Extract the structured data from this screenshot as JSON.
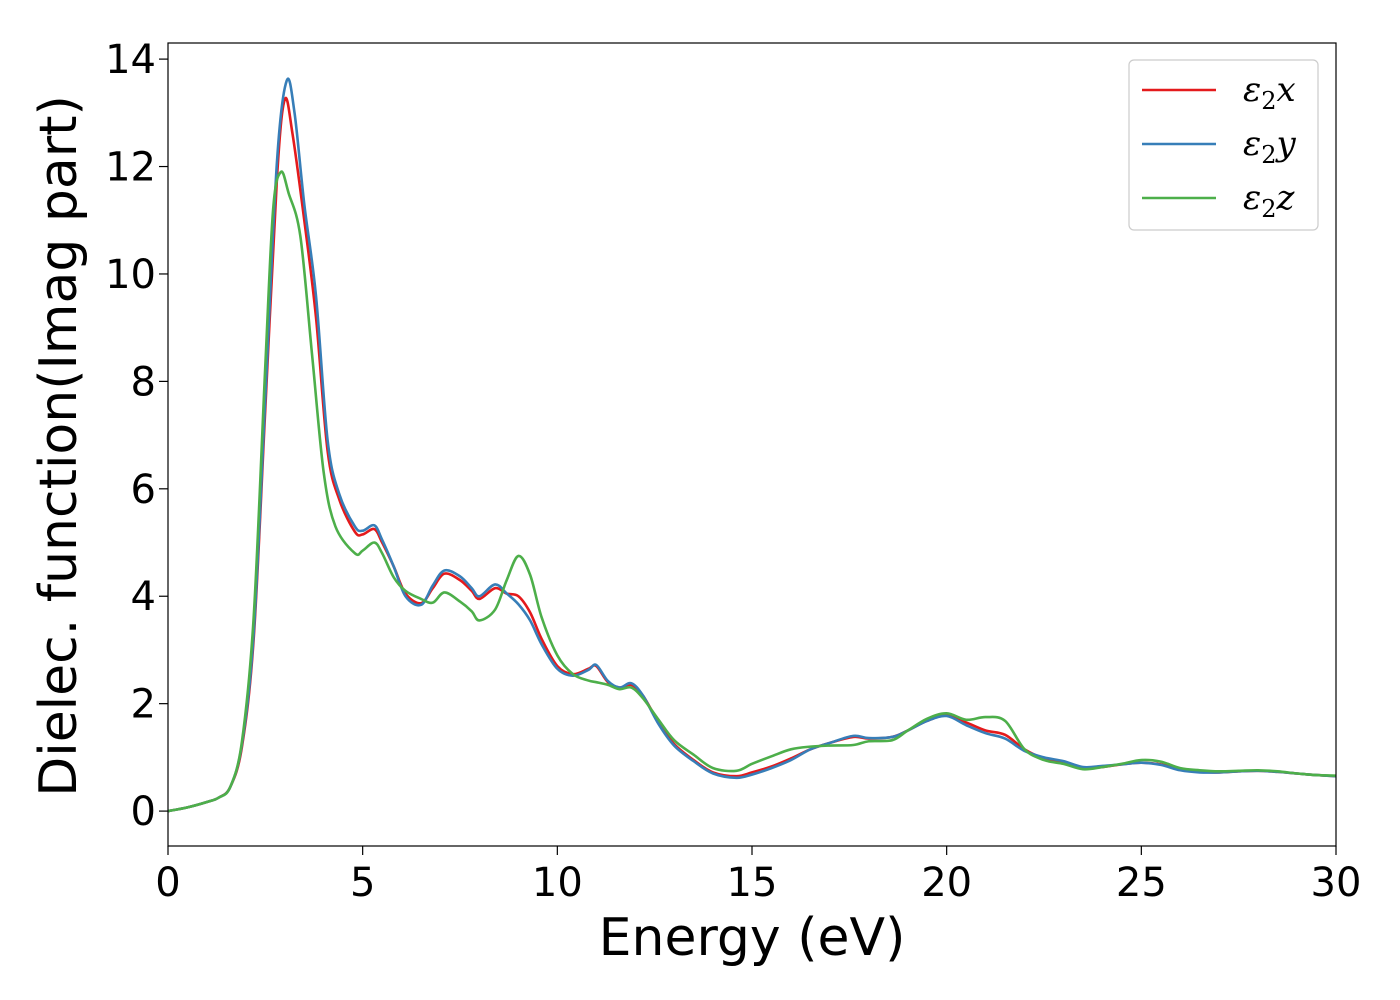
{
  "chart_data": {
    "type": "line",
    "xlabel": "Energy (eV)",
    "ylabel": "Dielec. function(Imag part)",
    "xlim": [
      0,
      30
    ],
    "ylim": [
      -0.65,
      14.3
    ],
    "xticks": [
      0,
      5,
      10,
      15,
      20,
      25,
      30
    ],
    "yticks": [
      0,
      2,
      4,
      6,
      8,
      10,
      12,
      14
    ],
    "grid": false,
    "legend_position": "top-right",
    "series": [
      {
        "name": "ε₂x",
        "legend": {
          "base": "ε",
          "sub": "2",
          "suffix": "x"
        },
        "color": "#e41a1c",
        "points": [
          [
            0,
            0.0
          ],
          [
            0.5,
            0.07
          ],
          [
            1.0,
            0.17
          ],
          [
            1.3,
            0.25
          ],
          [
            1.6,
            0.45
          ],
          [
            1.9,
            1.2
          ],
          [
            2.2,
            3.2
          ],
          [
            2.5,
            7.5
          ],
          [
            2.8,
            11.8
          ],
          [
            3.0,
            13.25
          ],
          [
            3.2,
            12.6
          ],
          [
            3.5,
            11.0
          ],
          [
            3.8,
            9.2
          ],
          [
            4.1,
            6.7
          ],
          [
            4.4,
            5.8
          ],
          [
            4.8,
            5.2
          ],
          [
            5.0,
            5.15
          ],
          [
            5.3,
            5.25
          ],
          [
            5.5,
            5.0
          ],
          [
            5.8,
            4.55
          ],
          [
            6.1,
            4.05
          ],
          [
            6.5,
            3.87
          ],
          [
            6.8,
            4.15
          ],
          [
            7.1,
            4.42
          ],
          [
            7.5,
            4.3
          ],
          [
            7.8,
            4.1
          ],
          [
            8.0,
            3.95
          ],
          [
            8.4,
            4.15
          ],
          [
            8.7,
            4.05
          ],
          [
            9.0,
            4.0
          ],
          [
            9.3,
            3.7
          ],
          [
            9.6,
            3.2
          ],
          [
            10.0,
            2.7
          ],
          [
            10.4,
            2.55
          ],
          [
            10.8,
            2.65
          ],
          [
            11.0,
            2.7
          ],
          [
            11.3,
            2.4
          ],
          [
            11.6,
            2.3
          ],
          [
            11.9,
            2.35
          ],
          [
            12.2,
            2.15
          ],
          [
            12.6,
            1.65
          ],
          [
            13.0,
            1.25
          ],
          [
            13.5,
            0.95
          ],
          [
            14.0,
            0.72
          ],
          [
            14.6,
            0.65
          ],
          [
            15.0,
            0.72
          ],
          [
            15.5,
            0.83
          ],
          [
            16.0,
            0.98
          ],
          [
            16.5,
            1.15
          ],
          [
            17.0,
            1.27
          ],
          [
            17.6,
            1.38
          ],
          [
            18.0,
            1.35
          ],
          [
            18.6,
            1.38
          ],
          [
            19.0,
            1.5
          ],
          [
            19.5,
            1.68
          ],
          [
            20.0,
            1.78
          ],
          [
            20.5,
            1.65
          ],
          [
            21.0,
            1.5
          ],
          [
            21.5,
            1.42
          ],
          [
            22.0,
            1.15
          ],
          [
            22.5,
            0.98
          ],
          [
            23.0,
            0.9
          ],
          [
            23.5,
            0.8
          ],
          [
            24.0,
            0.82
          ],
          [
            24.5,
            0.87
          ],
          [
            25.0,
            0.9
          ],
          [
            25.5,
            0.87
          ],
          [
            26.0,
            0.78
          ],
          [
            26.5,
            0.73
          ],
          [
            27.0,
            0.72
          ],
          [
            27.5,
            0.74
          ],
          [
            28.0,
            0.75
          ],
          [
            28.5,
            0.73
          ],
          [
            29.0,
            0.7
          ],
          [
            29.5,
            0.67
          ],
          [
            30.0,
            0.65
          ]
        ]
      },
      {
        "name": "ε₂y",
        "legend": {
          "base": "ε",
          "sub": "2",
          "suffix": "y"
        },
        "color": "#377eb8",
        "points": [
          [
            0,
            0.0
          ],
          [
            0.5,
            0.07
          ],
          [
            1.0,
            0.17
          ],
          [
            1.3,
            0.25
          ],
          [
            1.6,
            0.45
          ],
          [
            1.9,
            1.25
          ],
          [
            2.2,
            3.3
          ],
          [
            2.5,
            7.7
          ],
          [
            2.8,
            12.1
          ],
          [
            3.05,
            13.6
          ],
          [
            3.25,
            13.0
          ],
          [
            3.5,
            11.3
          ],
          [
            3.8,
            9.6
          ],
          [
            4.1,
            6.9
          ],
          [
            4.4,
            5.9
          ],
          [
            4.8,
            5.3
          ],
          [
            5.0,
            5.22
          ],
          [
            5.3,
            5.32
          ],
          [
            5.5,
            5.05
          ],
          [
            5.8,
            4.55
          ],
          [
            6.1,
            4.0
          ],
          [
            6.5,
            3.84
          ],
          [
            6.8,
            4.2
          ],
          [
            7.1,
            4.48
          ],
          [
            7.5,
            4.37
          ],
          [
            7.8,
            4.15
          ],
          [
            8.0,
            4.0
          ],
          [
            8.4,
            4.22
          ],
          [
            8.7,
            4.05
          ],
          [
            9.0,
            3.85
          ],
          [
            9.3,
            3.55
          ],
          [
            9.6,
            3.1
          ],
          [
            10.0,
            2.65
          ],
          [
            10.4,
            2.52
          ],
          [
            10.8,
            2.63
          ],
          [
            11.0,
            2.72
          ],
          [
            11.3,
            2.42
          ],
          [
            11.6,
            2.3
          ],
          [
            11.9,
            2.38
          ],
          [
            12.2,
            2.15
          ],
          [
            12.6,
            1.62
          ],
          [
            13.0,
            1.22
          ],
          [
            13.5,
            0.93
          ],
          [
            14.0,
            0.7
          ],
          [
            14.6,
            0.62
          ],
          [
            15.0,
            0.68
          ],
          [
            15.5,
            0.8
          ],
          [
            16.0,
            0.95
          ],
          [
            16.5,
            1.15
          ],
          [
            17.0,
            1.27
          ],
          [
            17.6,
            1.4
          ],
          [
            18.0,
            1.36
          ],
          [
            18.6,
            1.38
          ],
          [
            19.0,
            1.5
          ],
          [
            19.5,
            1.68
          ],
          [
            20.0,
            1.77
          ],
          [
            20.5,
            1.6
          ],
          [
            21.0,
            1.45
          ],
          [
            21.5,
            1.35
          ],
          [
            22.0,
            1.12
          ],
          [
            22.5,
            1.0
          ],
          [
            23.0,
            0.93
          ],
          [
            23.5,
            0.82
          ],
          [
            24.0,
            0.84
          ],
          [
            24.5,
            0.87
          ],
          [
            25.0,
            0.9
          ],
          [
            25.5,
            0.86
          ],
          [
            26.0,
            0.76
          ],
          [
            26.5,
            0.72
          ],
          [
            27.0,
            0.72
          ],
          [
            27.5,
            0.74
          ],
          [
            28.0,
            0.75
          ],
          [
            28.5,
            0.73
          ],
          [
            29.0,
            0.7
          ],
          [
            29.5,
            0.67
          ],
          [
            30.0,
            0.65
          ]
        ]
      },
      {
        "name": "ε₂z",
        "legend": {
          "base": "ε",
          "sub": "2",
          "suffix": "z"
        },
        "color": "#4daf4a",
        "points": [
          [
            0,
            0.0
          ],
          [
            0.5,
            0.07
          ],
          [
            1.0,
            0.17
          ],
          [
            1.3,
            0.25
          ],
          [
            1.6,
            0.45
          ],
          [
            1.9,
            1.3
          ],
          [
            2.2,
            3.6
          ],
          [
            2.5,
            8.3
          ],
          [
            2.7,
            11.2
          ],
          [
            2.9,
            11.9
          ],
          [
            3.1,
            11.5
          ],
          [
            3.4,
            10.7
          ],
          [
            3.7,
            8.5
          ],
          [
            4.0,
            6.3
          ],
          [
            4.3,
            5.3
          ],
          [
            4.8,
            4.8
          ],
          [
            5.0,
            4.85
          ],
          [
            5.3,
            5.0
          ],
          [
            5.5,
            4.8
          ],
          [
            5.8,
            4.35
          ],
          [
            6.1,
            4.1
          ],
          [
            6.5,
            3.95
          ],
          [
            6.8,
            3.88
          ],
          [
            7.1,
            4.07
          ],
          [
            7.5,
            3.9
          ],
          [
            7.8,
            3.72
          ],
          [
            8.0,
            3.55
          ],
          [
            8.4,
            3.75
          ],
          [
            8.7,
            4.3
          ],
          [
            9.0,
            4.75
          ],
          [
            9.3,
            4.4
          ],
          [
            9.6,
            3.6
          ],
          [
            10.0,
            2.9
          ],
          [
            10.4,
            2.55
          ],
          [
            10.8,
            2.43
          ],
          [
            11.0,
            2.4
          ],
          [
            11.3,
            2.35
          ],
          [
            11.6,
            2.27
          ],
          [
            11.9,
            2.3
          ],
          [
            12.2,
            2.1
          ],
          [
            12.6,
            1.7
          ],
          [
            13.0,
            1.32
          ],
          [
            13.5,
            1.05
          ],
          [
            14.0,
            0.8
          ],
          [
            14.6,
            0.75
          ],
          [
            15.0,
            0.88
          ],
          [
            15.5,
            1.02
          ],
          [
            16.0,
            1.15
          ],
          [
            16.5,
            1.2
          ],
          [
            17.0,
            1.22
          ],
          [
            17.6,
            1.23
          ],
          [
            18.0,
            1.3
          ],
          [
            18.6,
            1.32
          ],
          [
            19.0,
            1.5
          ],
          [
            19.5,
            1.72
          ],
          [
            20.0,
            1.82
          ],
          [
            20.5,
            1.7
          ],
          [
            21.0,
            1.75
          ],
          [
            21.5,
            1.68
          ],
          [
            22.0,
            1.15
          ],
          [
            22.5,
            0.95
          ],
          [
            23.0,
            0.88
          ],
          [
            23.5,
            0.78
          ],
          [
            24.0,
            0.82
          ],
          [
            24.5,
            0.88
          ],
          [
            25.0,
            0.95
          ],
          [
            25.5,
            0.92
          ],
          [
            26.0,
            0.8
          ],
          [
            26.5,
            0.76
          ],
          [
            27.0,
            0.74
          ],
          [
            27.5,
            0.75
          ],
          [
            28.0,
            0.76
          ],
          [
            28.5,
            0.74
          ],
          [
            29.0,
            0.7
          ],
          [
            29.5,
            0.67
          ],
          [
            30.0,
            0.66
          ]
        ]
      }
    ]
  }
}
